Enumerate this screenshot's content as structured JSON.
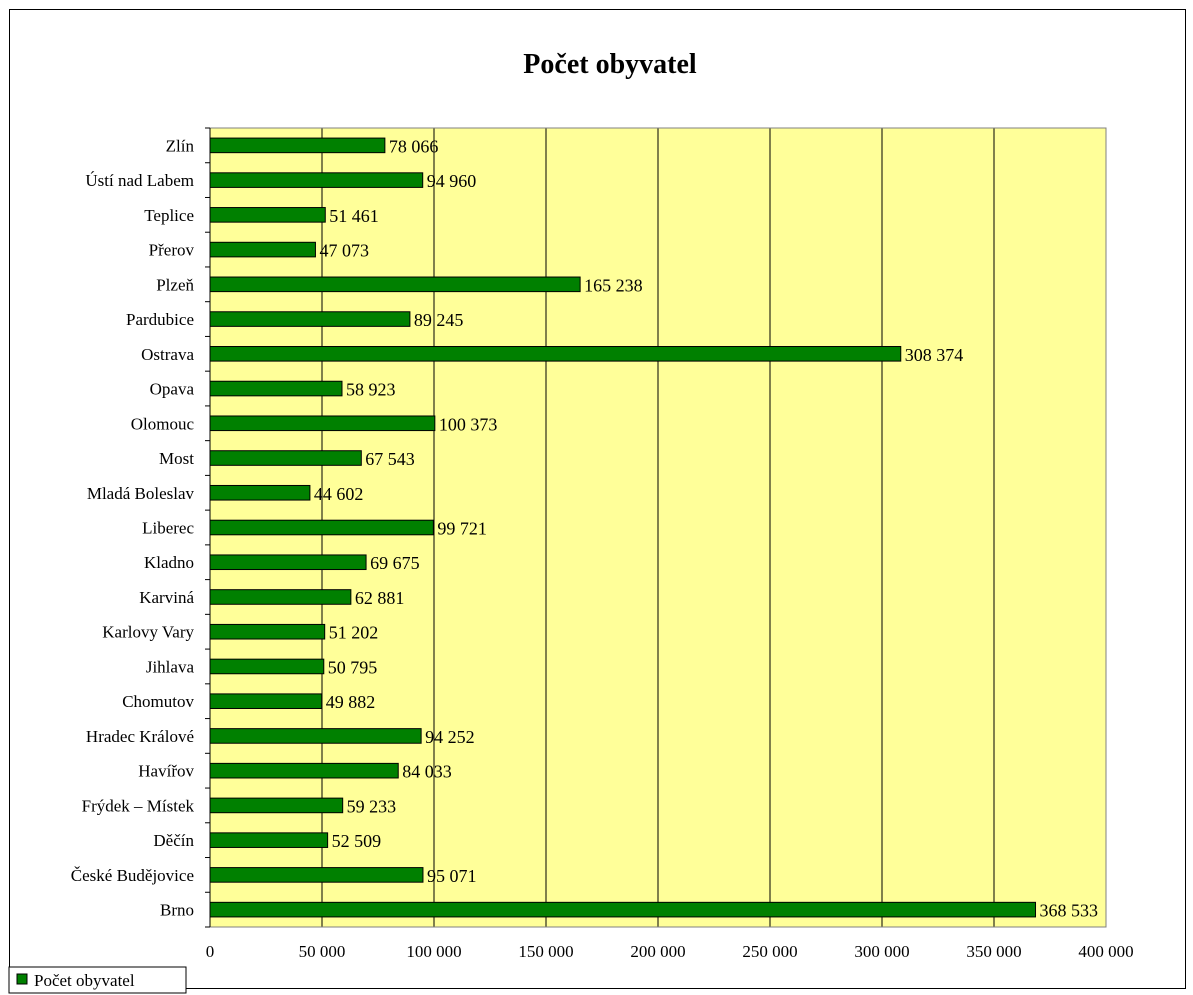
{
  "chart_data": {
    "type": "bar",
    "orientation": "horizontal",
    "title": "Počet obyvatel",
    "categories": [
      "Zlín",
      "Ústí nad Labem",
      "Teplice",
      "Přerov",
      "Plzeň",
      "Pardubice",
      "Ostrava",
      "Opava",
      "Olomouc",
      "Most",
      "Mladá Boleslav",
      "Liberec",
      "Kladno",
      "Karviná",
      "Karlovy Vary",
      "Jihlava",
      "Chomutov",
      "Hradec Králové",
      "Havířov",
      "Frýdek – Místek",
      "Děčín",
      "České Budějovice",
      "Brno"
    ],
    "series": [
      {
        "name": "Počet obyvatel",
        "values": [
          78066,
          94960,
          51461,
          47073,
          165238,
          89245,
          308374,
          58923,
          100373,
          67543,
          44602,
          99721,
          69675,
          62881,
          51202,
          50795,
          49882,
          94252,
          84033,
          59233,
          52509,
          95071,
          368533
        ],
        "data_labels": [
          "78 066",
          "94 960",
          "51 461",
          "47 073",
          "165 238",
          "89 245",
          "308 374",
          "58 923",
          "100 373",
          "67 543",
          "44 602",
          "99 721",
          "69 675",
          "62 881",
          "51 202",
          "50 795",
          "49 882",
          "94 252",
          "84 033",
          "59 233",
          "52 509",
          "95 071",
          "368 533"
        ],
        "color": "#008000"
      }
    ],
    "xlim": [
      0,
      400000
    ],
    "xticks": [
      0,
      50000,
      100000,
      150000,
      200000,
      250000,
      300000,
      350000,
      400000
    ],
    "xtick_labels": [
      "0",
      "50 000",
      "100 000",
      "150 000",
      "200 000",
      "250 000",
      "300 000",
      "350 000",
      "400 000"
    ],
    "grid": true,
    "plot_background": "#ffff99",
    "legend": {
      "position": "bottom-left",
      "label": "Počet obyvatel"
    }
  }
}
